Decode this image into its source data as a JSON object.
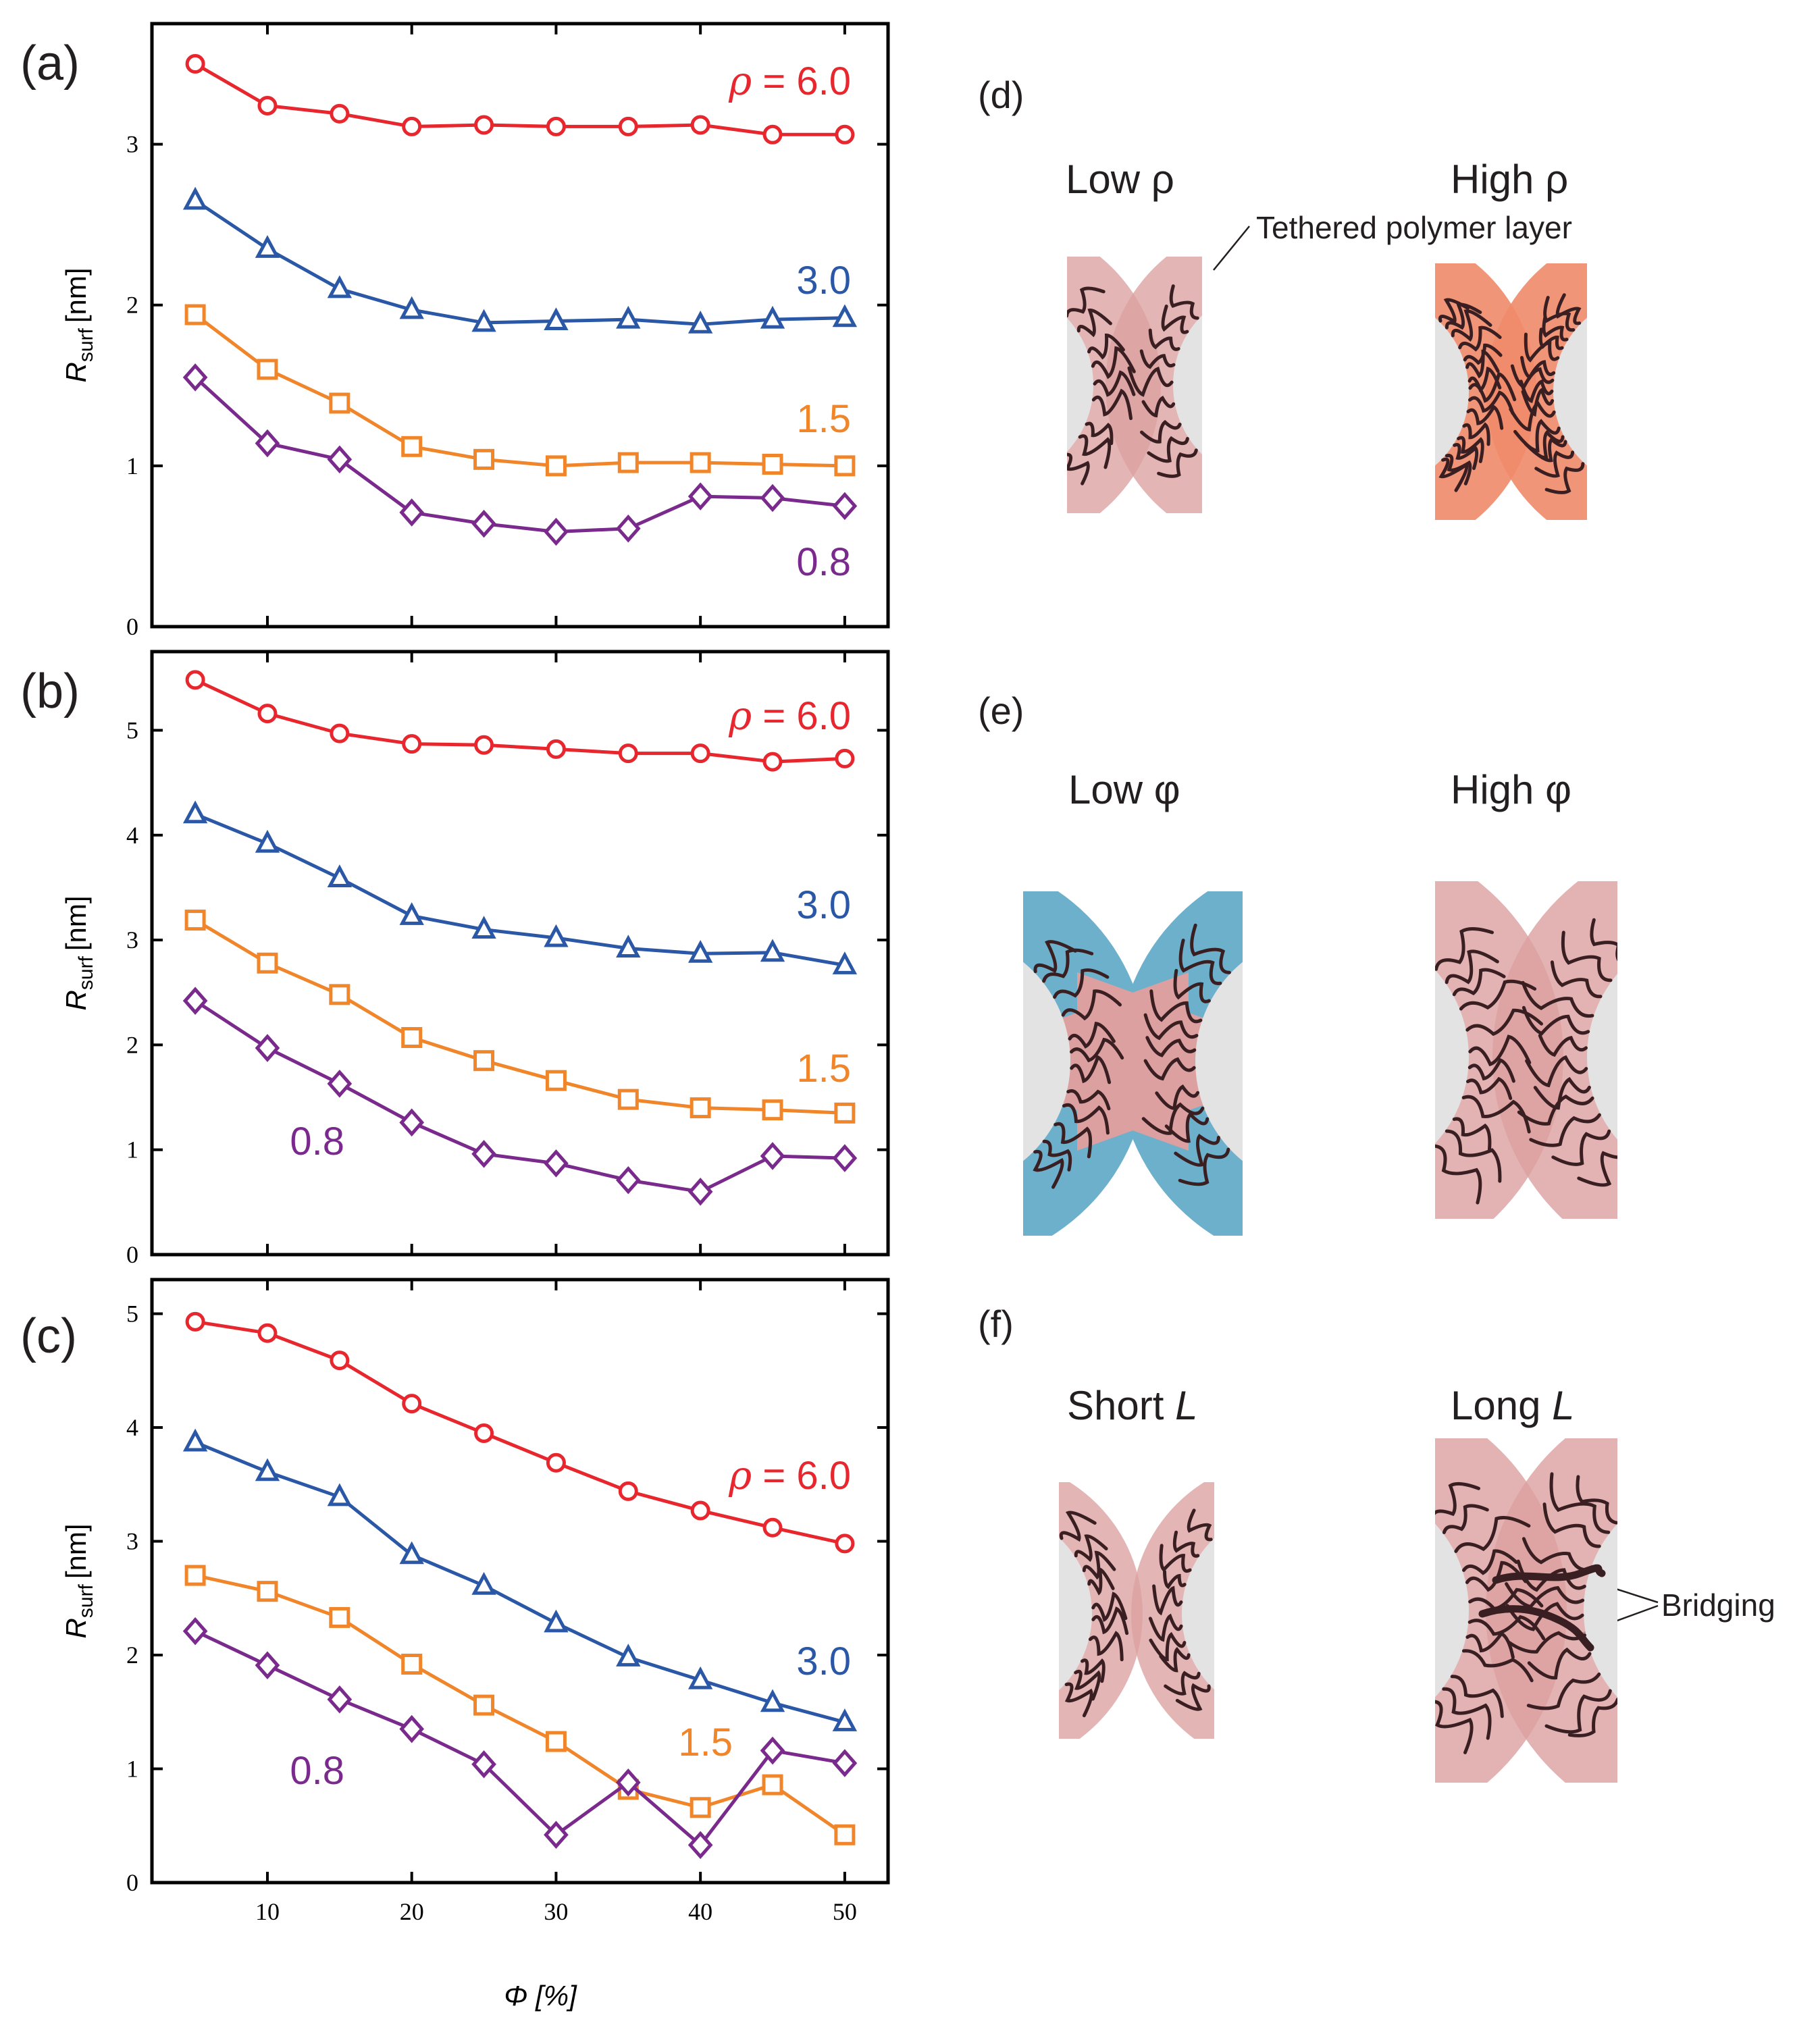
{
  "chart_data": [
    {
      "panel": "(a)",
      "type": "line",
      "xlabel": "Φ [%]",
      "ylabel_main": "R",
      "ylabel_sub": "surf",
      "ylabel_unit": "[nm]",
      "xlim": [
        2,
        53
      ],
      "ylim": [
        0,
        3.75
      ],
      "yticks": [
        0,
        1,
        2,
        3
      ],
      "xticks": [
        10,
        20,
        30,
        40,
        50
      ],
      "x": [
        5,
        10,
        15,
        20,
        25,
        30,
        35,
        40,
        45,
        50
      ],
      "series": [
        {
          "name": "ρ = 6.0",
          "label_prefix": "ρ",
          "label_rest": " = 6.0",
          "color": "#e8262d",
          "marker": "circle",
          "values": [
            3.5,
            3.24,
            3.19,
            3.11,
            3.12,
            3.11,
            3.11,
            3.12,
            3.06,
            3.06
          ]
        },
        {
          "name": "3.0",
          "label_prefix": "",
          "label_rest": "3.0",
          "color": "#2a57a6",
          "marker": "triangle",
          "values": [
            2.65,
            2.35,
            2.1,
            1.97,
            1.89,
            1.9,
            1.91,
            1.88,
            1.91,
            1.92
          ]
        },
        {
          "name": "1.5",
          "label_prefix": "",
          "label_rest": "1.5",
          "color": "#f0852a",
          "marker": "square",
          "values": [
            1.94,
            1.6,
            1.39,
            1.12,
            1.04,
            1.0,
            1.02,
            1.02,
            1.01,
            1.0
          ]
        },
        {
          "name": "0.8",
          "label_prefix": "",
          "label_rest": "0.8",
          "color": "#7a2a8c",
          "marker": "diamond",
          "values": [
            1.55,
            1.14,
            1.04,
            0.71,
            0.64,
            0.59,
            0.61,
            0.81,
            0.8,
            0.75
          ]
        }
      ]
    },
    {
      "panel": "(b)",
      "type": "line",
      "xlabel": "Φ [%]",
      "ylabel_main": "R",
      "ylabel_sub": "surf",
      "ylabel_unit": "[nm]",
      "xlim": [
        2,
        53
      ],
      "ylim": [
        0,
        5.75
      ],
      "yticks": [
        0,
        1,
        2,
        3,
        4,
        5
      ],
      "xticks": [
        10,
        20,
        30,
        40,
        50
      ],
      "x": [
        5,
        10,
        15,
        20,
        25,
        30,
        35,
        40,
        45,
        50
      ],
      "series": [
        {
          "name": "ρ = 6.0",
          "label_prefix": "ρ",
          "label_rest": " = 6.0",
          "color": "#e8262d",
          "marker": "circle",
          "values": [
            5.48,
            5.16,
            4.97,
            4.87,
            4.86,
            4.82,
            4.78,
            4.78,
            4.7,
            4.73
          ]
        },
        {
          "name": "3.0",
          "label_prefix": "",
          "label_rest": "3.0",
          "color": "#2a57a6",
          "marker": "triangle",
          "values": [
            4.2,
            3.92,
            3.59,
            3.23,
            3.1,
            3.02,
            2.92,
            2.87,
            2.88,
            2.76
          ]
        },
        {
          "name": "1.5",
          "label_prefix": "",
          "label_rest": "1.5",
          "color": "#f0852a",
          "marker": "square",
          "values": [
            3.19,
            2.78,
            2.48,
            2.07,
            1.85,
            1.66,
            1.48,
            1.4,
            1.38,
            1.35
          ]
        },
        {
          "name": "0.8",
          "label_prefix": "",
          "label_rest": "0.8",
          "color": "#7a2a8c",
          "marker": "diamond",
          "values": [
            2.42,
            1.97,
            1.63,
            1.26,
            0.96,
            0.87,
            0.71,
            0.6,
            0.94,
            0.92
          ]
        }
      ]
    },
    {
      "panel": "(c)",
      "type": "line",
      "xlabel": "Φ [%]",
      "ylabel_main": "R",
      "ylabel_sub": "surf",
      "ylabel_unit": "[nm]",
      "xlim": [
        2,
        53
      ],
      "ylim": [
        0,
        5.3
      ],
      "yticks": [
        0,
        1,
        2,
        3,
        4,
        5
      ],
      "xticks": [
        10,
        20,
        30,
        40,
        50
      ],
      "x": [
        5,
        10,
        15,
        20,
        25,
        30,
        35,
        40,
        45,
        50
      ],
      "series": [
        {
          "name": "ρ = 6.0",
          "label_prefix": "ρ",
          "label_rest": " = 6.0",
          "color": "#e8262d",
          "marker": "circle",
          "values": [
            4.93,
            4.83,
            4.59,
            4.21,
            3.95,
            3.69,
            3.44,
            3.27,
            3.12,
            2.98
          ]
        },
        {
          "name": "3.0",
          "label_prefix": "",
          "label_rest": "3.0",
          "color": "#2a57a6",
          "marker": "triangle",
          "values": [
            3.87,
            3.61,
            3.39,
            2.88,
            2.61,
            2.28,
            1.98,
            1.78,
            1.58,
            1.41
          ]
        },
        {
          "name": "1.5",
          "label_prefix": "",
          "label_rest": "1.5",
          "color": "#f0852a",
          "marker": "square",
          "values": [
            2.7,
            2.56,
            2.33,
            1.92,
            1.56,
            1.24,
            0.82,
            0.66,
            0.86,
            0.42
          ]
        },
        {
          "name": "0.8",
          "label_prefix": "",
          "label_rest": "0.8",
          "color": "#7a2a8c",
          "marker": "diamond",
          "values": [
            2.21,
            1.91,
            1.61,
            1.35,
            1.04,
            0.42,
            0.88,
            0.33,
            1.16,
            1.05
          ]
        }
      ]
    }
  ],
  "panels": {
    "d": {
      "label": "(d)",
      "left_title": "Low ρ",
      "right_title": "High ρ",
      "annotation": "Tethered polymer layer"
    },
    "e": {
      "label": "(e)",
      "left_title": "Low φ",
      "right_title": "High φ"
    },
    "f": {
      "label": "(f)",
      "left_title_text": "Short ",
      "left_title_var": "L",
      "right_title_text": "Long ",
      "right_title_var": "L",
      "annotation": "Bridging"
    }
  },
  "colors": {
    "core": "#e3e3e3",
    "layer_pink": "#dca0a0",
    "layer_dense": "#ef8a6a",
    "layer_blue": "#6db0cc",
    "chain": "#3a1f22"
  }
}
